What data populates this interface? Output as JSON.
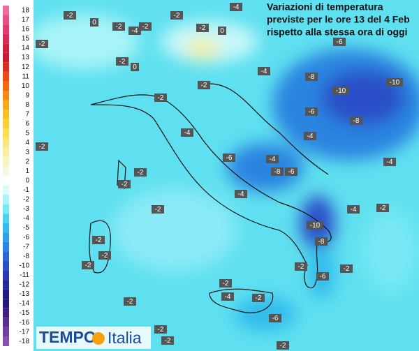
{
  "title_lines": [
    "Variazioni di temperatura",
    "previste per le ore 13 del 4 Feb",
    "rispetto alla stessa ora di oggi"
  ],
  "legend": {
    "labels": [
      "18",
      "17",
      "16",
      "15",
      "14",
      "13",
      "12",
      "11",
      "10",
      "9",
      "8",
      "7",
      "6",
      "5",
      "4",
      "3",
      "2",
      "1",
      "0",
      "-1",
      "-2",
      "-3",
      "-4",
      "-5",
      "-6",
      "-7",
      "-8",
      "-10",
      "-11",
      "-12",
      "-13",
      "-14",
      "-15",
      "-16",
      "-17",
      "-18"
    ],
    "colors": [
      "#f06aa0",
      "#e8508a",
      "#e03a70",
      "#d82a58",
      "#cc2040",
      "#c81a30",
      "#d83020",
      "#e84a18",
      "#f06a10",
      "#f88a10",
      "#f8a818",
      "#f8c020",
      "#f8d030",
      "#f8e050",
      "#f8e878",
      "#f8f0a0",
      "#f8f4c0",
      "#f8f8e0",
      "#ffffff",
      "#d8fcfc",
      "#a8f4f8",
      "#78e8f4",
      "#48d4f0",
      "#30bcec",
      "#2ea0e8",
      "#2a84e0",
      "#2a68d8",
      "#2a50c8",
      "#2838b0",
      "#24289a",
      "#201c88",
      "#281878",
      "#402080",
      "#583090",
      "#7040a0",
      "#8850b0"
    ]
  },
  "map_labels": [
    "-2",
    "0",
    "-2",
    "-4",
    "-2",
    "-2",
    "-4",
    "-2",
    "0",
    "-2",
    "-2",
    "0",
    "-6",
    "-4",
    "-8",
    "-10",
    "-10",
    "-2",
    "-2",
    "-6",
    "-8",
    "-4",
    "-4",
    "-2",
    "-6",
    "-4",
    "-2",
    "-8",
    "-6",
    "-4",
    "-2",
    "-4",
    "-4",
    "-2",
    "-2",
    "-10",
    "-8",
    "-2",
    "-2",
    "-2",
    "-2",
    "-6",
    "-2",
    "-2",
    "-4",
    "-2",
    "-2",
    "-6",
    "-2",
    "-2",
    "-2"
  ],
  "logo": {
    "brand": "TEMPO",
    "country": "Italia"
  }
}
